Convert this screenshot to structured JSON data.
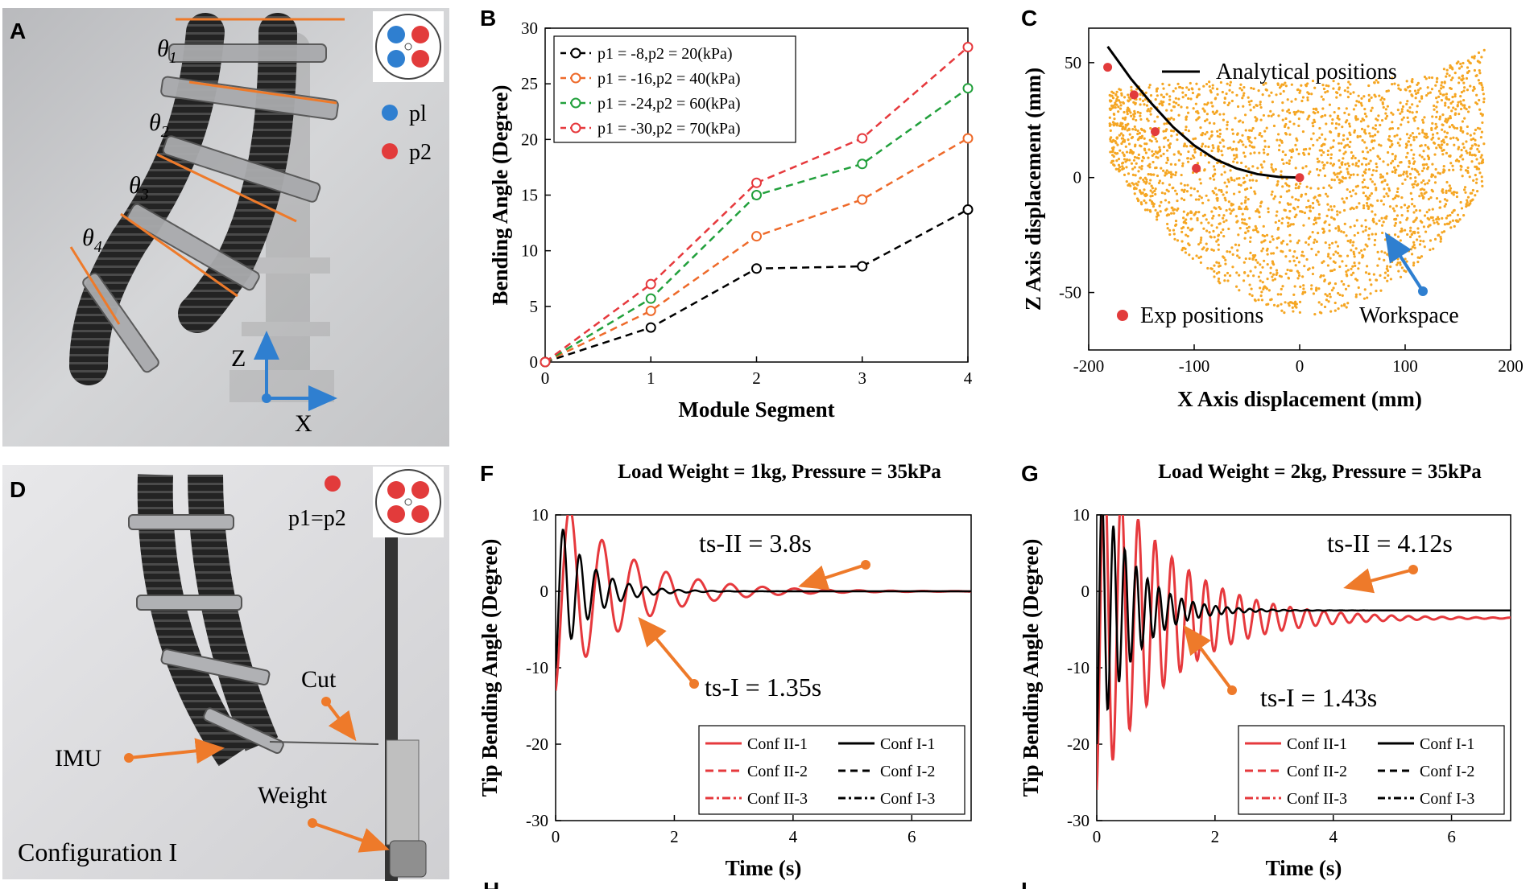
{
  "panels": {
    "A": {
      "label": "A",
      "angles": [
        "θ",
        "θ",
        "θ",
        "θ"
      ],
      "angle_subs": [
        "1",
        "2",
        "3",
        "4"
      ],
      "legend": [
        "pl",
        "p2"
      ],
      "axes": [
        "Z",
        "X"
      ],
      "colors": {
        "p1": "#2f7fd0",
        "p2": "#e23b3b",
        "lines": "#ee7a2a"
      }
    },
    "D": {
      "label": "D",
      "legend": "p1=p2",
      "annotations": [
        "Cut",
        "IMU",
        "Weight"
      ],
      "caption": "Configuration I"
    },
    "B": {
      "label": "B"
    },
    "C": {
      "label": "C"
    },
    "F": {
      "label": "F",
      "ts2": "ts-II = 3.8s",
      "ts1": "ts-I = 1.35s"
    },
    "G": {
      "label": "G",
      "ts2": "ts-II = 4.12s",
      "ts1": "ts-I = 1.43s"
    },
    "H": {
      "label": "H"
    },
    "I": {
      "label": "I"
    }
  },
  "chart_data": [
    {
      "id": "B",
      "type": "line",
      "xlabel": "Module Segment",
      "ylabel": "Bending Angle (Degree)",
      "xlim": [
        0,
        4
      ],
      "ylim": [
        0,
        30
      ],
      "xticks": [
        "0",
        "1",
        "2",
        "3",
        "4"
      ],
      "yticks": [
        "0",
        "5",
        "10",
        "15",
        "20",
        "25",
        "30"
      ],
      "x": [
        0,
        1,
        2,
        3,
        4
      ],
      "series": [
        {
          "name": "p1 = -8,p2 = 20(kPa)",
          "color": "#000000",
          "values": [
            0,
            3.1,
            8.4,
            8.6,
            13.7
          ]
        },
        {
          "name": "p1 = -16,p2 = 40(kPa)",
          "color": "#ee6a2a",
          "values": [
            0,
            4.6,
            11.3,
            14.6,
            20.1
          ]
        },
        {
          "name": "p1 = -24,p2 = 60(kPa)",
          "color": "#22a03c",
          "values": [
            0,
            5.7,
            15.0,
            17.8,
            24.6
          ]
        },
        {
          "name": "p1 = -30,p2 = 70(kPa)",
          "color": "#e6393d",
          "values": [
            0,
            7.0,
            16.1,
            20.1,
            28.3
          ]
        }
      ]
    },
    {
      "id": "C",
      "type": "scatter",
      "xlabel": "X Axis displacement (mm)",
      "ylabel": "Z Axis displacement (mm)",
      "xlim": [
        -200,
        200
      ],
      "ylim": [
        -75,
        65
      ],
      "xticks": [
        "-200",
        "-100",
        "0",
        "100",
        "200"
      ],
      "yticks": [
        "-50",
        "0",
        "50"
      ],
      "legend_line": "Analytical positions",
      "legend_exp": "Exp positions",
      "workspace_label": "Workspace",
      "workspace_color": "#f5a623",
      "analytical": {
        "x": [
          -182,
          -160,
          -140,
          -120,
          -100,
          -80,
          -60,
          -40,
          -20,
          0
        ],
        "z": [
          57,
          43,
          32,
          22,
          14,
          8,
          4,
          1.5,
          0.3,
          0
        ]
      },
      "exp": {
        "x": [
          -182,
          -157,
          -137,
          -98,
          0
        ],
        "z": [
          48,
          36,
          20,
          4,
          0
        ]
      }
    },
    {
      "id": "F",
      "type": "line",
      "title": "Load Weight = 1kg, Pressure = 35kPa",
      "xlabel": "Time (s)",
      "ylabel": "Tip Bending Angle (Degree)",
      "xlim": [
        0,
        7
      ],
      "ylim": [
        -30,
        10
      ],
      "xticks": [
        "0",
        "2",
        "4",
        "6"
      ],
      "yticks": [
        "-30",
        "-20",
        "-10",
        "0",
        "10"
      ],
      "legend": [
        "Conf II-1",
        "Conf I-1",
        "Conf II-2",
        "Conf I-2",
        "Conf II-3",
        "Conf I-3"
      ],
      "series_params": {
        "conf2": {
          "start": -13,
          "amp": 6.5,
          "freq": 1.85,
          "decay": 0.9,
          "final": 0
        },
        "conf1": {
          "start": -10,
          "amp": 4.0,
          "freq": 3.6,
          "decay": 1.9,
          "final": 0
        }
      }
    },
    {
      "id": "G",
      "type": "line",
      "title": "Load Weight = 2kg, Pressure = 35kPa",
      "xlabel": "Time (s)",
      "ylabel": "Tip Bending Angle (Degree)",
      "xlim": [
        0,
        7
      ],
      "ylim": [
        -30,
        10
      ],
      "xticks": [
        "0",
        "2",
        "4",
        "6"
      ],
      "yticks": [
        "-30",
        "-20",
        "-10",
        "0",
        "10"
      ],
      "legend": [
        "Conf II-1",
        "Conf I-1",
        "Conf II-2",
        "Conf I-2",
        "Conf II-3",
        "Conf I-3"
      ],
      "series_params": {
        "conf2": {
          "start": -26,
          "amp": 11,
          "freq": 3.5,
          "decay": 0.85,
          "final": -3.5
        },
        "conf1": {
          "start": -20,
          "amp": 6,
          "freq": 5.2,
          "decay": 1.7,
          "final": -2.5
        }
      }
    }
  ]
}
